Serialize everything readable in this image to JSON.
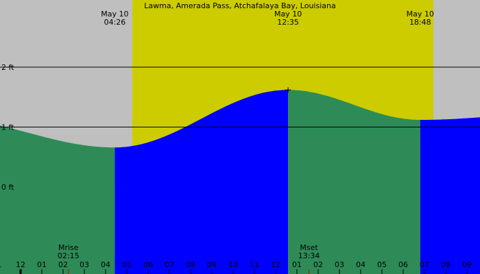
{
  "chart_data": {
    "type": "area",
    "title": "Lawma, Amerada Pass, Atchafalaya Bay, Louisiana",
    "xlabel": "",
    "ylabel": "",
    "ylim": [
      -1.3,
      3.15
    ],
    "y_ticks": [
      {
        "value": 2,
        "label": "2 ft"
      },
      {
        "value": 1,
        "label": "1 ft"
      },
      {
        "value": 0,
        "label": "0 ft"
      }
    ],
    "x_ticks": [
      "1",
      "12",
      "01",
      "02",
      "03",
      "04",
      "05",
      "06",
      "07",
      "08",
      "09",
      "10",
      "11",
      "12",
      "01",
      "02",
      "03",
      "04",
      "05",
      "06",
      "07",
      "08",
      "09"
    ],
    "daylight_window": {
      "start": "05:15",
      "end": "19:25"
    },
    "tide_events": [
      {
        "type": "low",
        "date": "May 10",
        "time": "04:26",
        "height_ft": 0.66
      },
      {
        "type": "high",
        "date": "May 10",
        "time": "12:35",
        "height_ft": 1.62
      },
      {
        "type": "low",
        "date": "May 10",
        "time": "18:48",
        "height_ft": 1.12
      }
    ],
    "edge_heights_ft": {
      "start": 1.15,
      "end": 1.22
    },
    "moon_events": [
      {
        "label": "Mrise",
        "time": "02:15"
      },
      {
        "label": "Mset",
        "time": "13:34"
      }
    ],
    "colors": {
      "night": "#bfbfbf",
      "day": "#cccc00",
      "falling_tide": "#2e8b57",
      "rising_tide": "#0000ff",
      "moon_marker": "#cc0000",
      "midnight_marker": "#000000"
    }
  }
}
